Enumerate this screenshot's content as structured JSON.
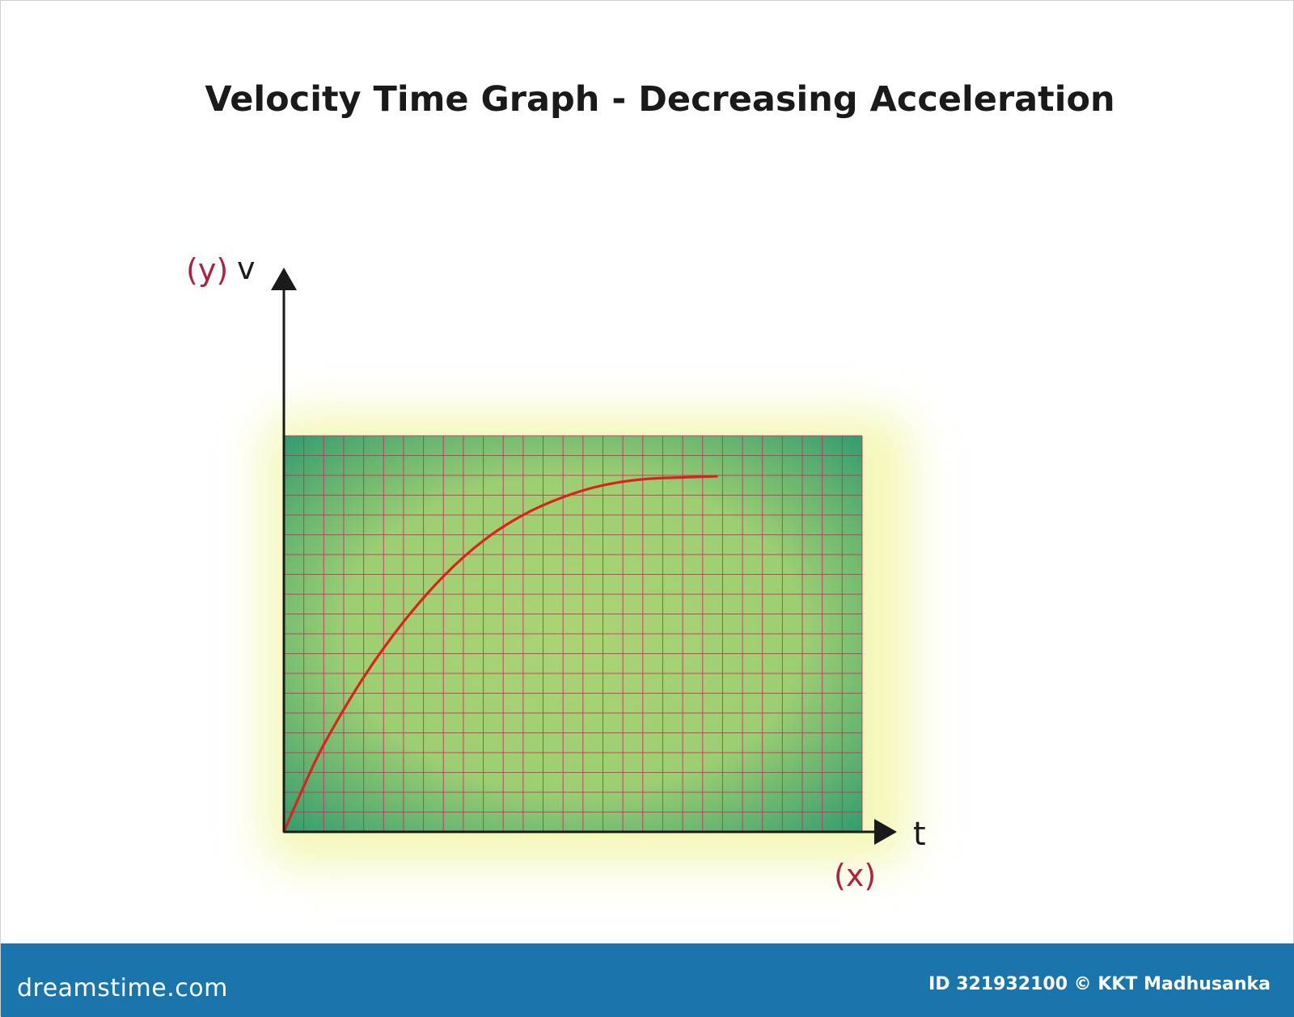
{
  "chart_data": {
    "type": "line",
    "title": "Velocity Time Graph - Decreasing Acceleration",
    "xlabel": "t",
    "ylabel": "v",
    "x_axis_tag": "(x)",
    "y_axis_tag": "(y)",
    "grid": true,
    "xlim": [
      0,
      29
    ],
    "ylim": [
      0,
      20
    ],
    "series": [
      {
        "values": [
          {
            "x": 0,
            "y": 0
          },
          {
            "x": 1,
            "y": 2.3
          },
          {
            "x": 2,
            "y": 4.4
          },
          {
            "x": 4,
            "y": 7.8
          },
          {
            "x": 6,
            "y": 10.6
          },
          {
            "x": 8,
            "y": 12.9
          },
          {
            "x": 10,
            "y": 14.7
          },
          {
            "x": 12,
            "y": 16.0
          },
          {
            "x": 14,
            "y": 16.9
          },
          {
            "x": 16,
            "y": 17.5
          },
          {
            "x": 18,
            "y": 17.8
          },
          {
            "x": 20,
            "y": 17.9
          },
          {
            "x": 21.7,
            "y": 17.95
          }
        ]
      }
    ]
  },
  "colors": {
    "curve": "#e0201c",
    "grid": "#cc2a66",
    "axis": "#1a1a1a",
    "axis_tag": "#b02040",
    "plot_center": "#abd474",
    "plot_edge": "#2e9a6e",
    "glow": "#f4f7b8",
    "footer": "#1a75ad"
  },
  "watermark": {
    "brand": "dreamstime.com",
    "credit": "ID 321932100 © KKT Madhusanka"
  }
}
